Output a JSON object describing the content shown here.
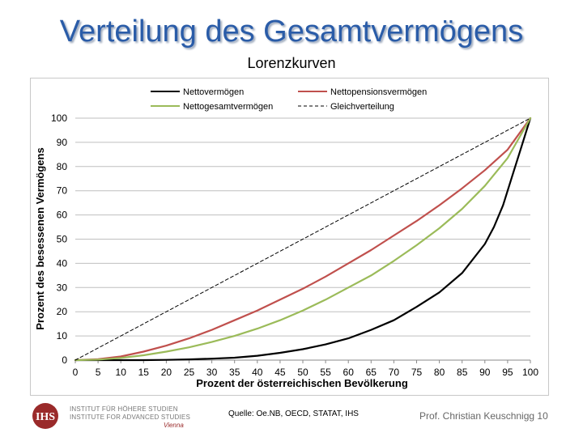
{
  "slide": {
    "title": "Verteilung des Gesamtvermögens",
    "subtitle": "Lorenzkurven",
    "source": "Quelle: Oe.NB, OECD, STATAT, IHS",
    "author": "Prof. Christian Keuschnigg 10",
    "logo": {
      "acronym": "IHS",
      "line1": "INSTITUT FÜR HÖHERE STUDIEN",
      "line2": "INSTITUTE FOR ADVANCED STUDIES",
      "city": "Vienna",
      "color": "#9a2a2a"
    }
  },
  "chart_data": {
    "type": "line",
    "title": "",
    "xlabel": "Prozent der österreichischen Bevölkerung",
    "ylabel": "Prozent des besessenen Vermögens",
    "xlim": [
      0,
      100
    ],
    "ylim": [
      0,
      100
    ],
    "xticks": [
      0,
      5,
      10,
      15,
      20,
      25,
      30,
      35,
      40,
      45,
      50,
      55,
      60,
      65,
      70,
      75,
      80,
      85,
      90,
      95,
      100
    ],
    "yticks": [
      0,
      10,
      20,
      30,
      40,
      50,
      60,
      70,
      80,
      90,
      100
    ],
    "grid": true,
    "legend_position": "top",
    "series": [
      {
        "name": "Nettovermögen",
        "color": "#000000",
        "dash": "solid",
        "x": [
          0,
          5,
          10,
          15,
          20,
          25,
          30,
          35,
          40,
          45,
          50,
          55,
          60,
          65,
          70,
          75,
          80,
          85,
          90,
          92,
          94,
          96,
          98,
          100
        ],
        "y": [
          0,
          0,
          0,
          0,
          0.1,
          0.3,
          0.6,
          1,
          1.8,
          3,
          4.5,
          6.5,
          9,
          12.5,
          16.5,
          22,
          28,
          36,
          48,
          55,
          64,
          76,
          88,
          100
        ]
      },
      {
        "name": "Nettopensionsvermögen",
        "color": "#c0504d",
        "dash": "solid",
        "x": [
          0,
          5,
          10,
          15,
          20,
          25,
          30,
          35,
          40,
          45,
          50,
          55,
          60,
          65,
          70,
          75,
          80,
          85,
          90,
          95,
          100
        ],
        "y": [
          0,
          0.4,
          1.5,
          3.5,
          6,
          9,
          12.5,
          16.5,
          20.5,
          25,
          29.5,
          34.5,
          40,
          45.5,
          51.5,
          57.5,
          64,
          71,
          78.5,
          87,
          100
        ]
      },
      {
        "name": "Nettogesamtvermögen",
        "color": "#9bbb59",
        "dash": "solid",
        "x": [
          0,
          5,
          10,
          15,
          20,
          25,
          30,
          35,
          40,
          45,
          50,
          55,
          60,
          65,
          70,
          75,
          80,
          85,
          90,
          95,
          100
        ],
        "y": [
          0,
          0.2,
          0.9,
          2,
          3.5,
          5.3,
          7.5,
          10,
          13,
          16.5,
          20.5,
          25,
          30,
          35,
          41,
          47.5,
          54.5,
          62.5,
          72,
          83.5,
          100
        ]
      },
      {
        "name": "Gleichverteilung",
        "color": "#000000",
        "dash": "dashed",
        "x": [
          0,
          100
        ],
        "y": [
          0,
          100
        ]
      }
    ]
  }
}
